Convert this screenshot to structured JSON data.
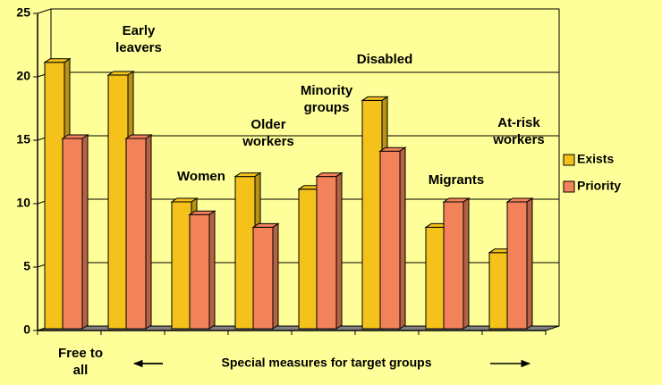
{
  "chart_data": {
    "type": "bar3d",
    "categories": [
      "Free to all",
      "Early leavers",
      "Women",
      "Older workers",
      "Minority groups",
      "Disabled",
      "Migrants",
      "At-risk workers"
    ],
    "series": [
      {
        "name": "Exists",
        "color": "#f5c21b",
        "values": [
          21,
          20,
          10,
          12,
          11,
          18,
          8,
          6
        ]
      },
      {
        "name": "Priority",
        "color": "#f2825a",
        "values": [
          15,
          15,
          9,
          8,
          12,
          14,
          10,
          10
        ]
      }
    ],
    "annotation": "Special measures for target groups",
    "ylim": [
      0,
      25
    ],
    "yticks": [
      0,
      5,
      10,
      15,
      20,
      25
    ],
    "grid": true,
    "legend": "right"
  }
}
